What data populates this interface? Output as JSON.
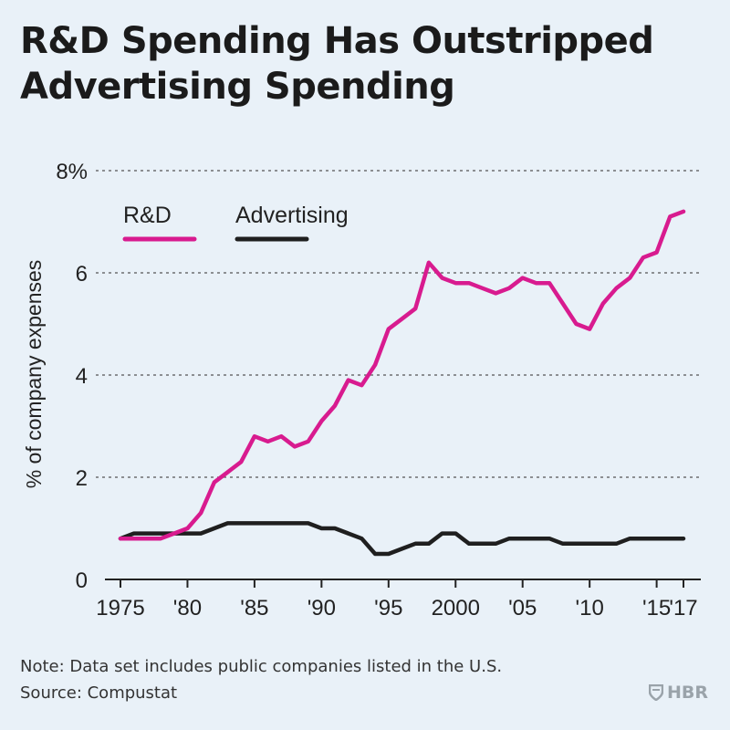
{
  "title_lines": [
    "R&D Spending Has Outstripped",
    "Advertising Spending"
  ],
  "note": "Note: Data set includes public companies listed in the U.S.",
  "source": "Source: Compustat",
  "brand": "HBR",
  "chart_data": {
    "type": "line",
    "ylabel": "% of company expenses",
    "xlabel": "",
    "ylim": [
      0,
      8
    ],
    "xlim": [
      1975,
      2017
    ],
    "y_ticks": [
      0,
      2,
      4,
      6,
      8
    ],
    "y_tick_labels": [
      "0",
      "2",
      "4",
      "6",
      "8%"
    ],
    "x_ticks": [
      1975,
      1980,
      1985,
      1990,
      1995,
      2000,
      2005,
      2010,
      2015,
      2017
    ],
    "x_tick_labels": [
      "1975",
      "'80",
      "'85",
      "'90",
      "'95",
      "2000",
      "'05",
      "'10",
      "'15",
      "'17"
    ],
    "grid": "horizontal dashed",
    "legend_position": "top-left",
    "x": [
      1975,
      1976,
      1977,
      1978,
      1979,
      1980,
      1981,
      1982,
      1983,
      1984,
      1985,
      1986,
      1987,
      1988,
      1989,
      1990,
      1991,
      1992,
      1993,
      1994,
      1995,
      1996,
      1997,
      1998,
      1999,
      2000,
      2001,
      2002,
      2003,
      2004,
      2005,
      2006,
      2007,
      2008,
      2009,
      2010,
      2011,
      2012,
      2013,
      2014,
      2015,
      2016,
      2017
    ],
    "series": [
      {
        "name": "R&D",
        "color": "#d81b8f",
        "values": [
          0.8,
          0.8,
          0.8,
          0.8,
          0.9,
          1.0,
          1.3,
          1.9,
          2.1,
          2.3,
          2.8,
          2.7,
          2.8,
          2.6,
          2.7,
          3.1,
          3.4,
          3.9,
          3.8,
          4.2,
          4.9,
          5.1,
          5.3,
          6.2,
          5.9,
          5.8,
          5.8,
          5.7,
          5.6,
          5.7,
          5.9,
          5.8,
          5.8,
          5.4,
          5.0,
          4.9,
          5.4,
          5.7,
          5.9,
          6.3,
          6.4,
          7.1,
          7.2
        ]
      },
      {
        "name": "Advertising",
        "color": "#1f1f1f",
        "values": [
          0.8,
          0.9,
          0.9,
          0.9,
          0.9,
          0.9,
          0.9,
          1.0,
          1.1,
          1.1,
          1.1,
          1.1,
          1.1,
          1.1,
          1.1,
          1.0,
          1.0,
          0.9,
          0.8,
          0.5,
          0.5,
          0.6,
          0.7,
          0.7,
          0.9,
          0.9,
          0.7,
          0.7,
          0.7,
          0.8,
          0.8,
          0.8,
          0.8,
          0.7,
          0.7,
          0.7,
          0.7,
          0.7,
          0.8,
          0.8,
          0.8,
          0.8,
          0.8
        ]
      }
    ]
  }
}
